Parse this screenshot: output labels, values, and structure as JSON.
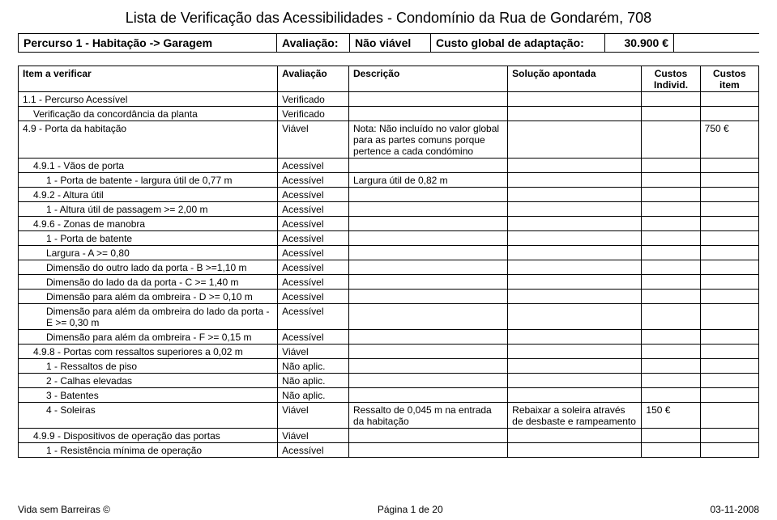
{
  "title": "Lista de Verificação das Acessibilidades - Condomínio da Rua de Gondarém, 708",
  "header": {
    "path": "Percurso 1 - Habitação -> Garagem",
    "eval_label": "Avaliação:",
    "eval_value": "Não viável",
    "cost_label": "Custo global de adaptação:",
    "cost_value": "30.900 €"
  },
  "columns": {
    "item": "Item a verificar",
    "eval": "Avaliação",
    "desc": "Descrição",
    "sol": "Solução apontada",
    "ci": "Custos Individ.",
    "ct": "Custos item"
  },
  "rows": [
    {
      "item": "1.1 - Percurso Acessível",
      "indent": 0,
      "eval": "Verificado",
      "desc": "",
      "sol": "",
      "ci": "",
      "ct": ""
    },
    {
      "item": "Verificação da concordância da planta",
      "indent": 1,
      "eval": "Verificado",
      "desc": "",
      "sol": "",
      "ci": "",
      "ct": ""
    },
    {
      "item": "4.9 - Porta da habitação",
      "indent": 0,
      "eval": "Viável",
      "desc": "Nota: Não incluído no valor global para as partes comuns porque pertence a cada condómino",
      "sol": "",
      "ci": "",
      "ct": "750 €"
    },
    {
      "item": "4.9.1 - Vãos de porta",
      "indent": 1,
      "eval": "Acessível",
      "desc": "",
      "sol": "",
      "ci": "",
      "ct": ""
    },
    {
      "item": "1 - Porta de batente - largura útil de 0,77 m",
      "indent": 2,
      "eval": "Acessível",
      "desc": "Largura útil de 0,82 m",
      "sol": "",
      "ci": "",
      "ct": ""
    },
    {
      "item": "4.9.2 - Altura útil",
      "indent": 1,
      "eval": "Acessível",
      "desc": "",
      "sol": "",
      "ci": "",
      "ct": ""
    },
    {
      "item": "1 - Altura útil de passagem >= 2,00 m",
      "indent": 2,
      "eval": "Acessível",
      "desc": "",
      "sol": "",
      "ci": "",
      "ct": ""
    },
    {
      "item": "4.9.6 - Zonas de manobra",
      "indent": 1,
      "eval": "Acessível",
      "desc": "",
      "sol": "",
      "ci": "",
      "ct": ""
    },
    {
      "item": "1 - Porta de batente",
      "indent": 2,
      "eval": "Acessível",
      "desc": "",
      "sol": "",
      "ci": "",
      "ct": ""
    },
    {
      "item": "Largura - A >= 0,80",
      "indent": 2,
      "eval": "Acessível",
      "desc": "",
      "sol": "",
      "ci": "",
      "ct": ""
    },
    {
      "item": "Dimensão do outro lado da porta - B >=1,10 m",
      "indent": 2,
      "eval": "Acessível",
      "desc": "",
      "sol": "",
      "ci": "",
      "ct": ""
    },
    {
      "item": "Dimensão do lado da da porta - C >= 1,40 m",
      "indent": 2,
      "eval": "Acessível",
      "desc": "",
      "sol": "",
      "ci": "",
      "ct": ""
    },
    {
      "item": "Dimensão para além da ombreira - D >= 0,10 m",
      "indent": 2,
      "eval": "Acessível",
      "desc": "",
      "sol": "",
      "ci": "",
      "ct": ""
    },
    {
      "item": "Dimensão para além da ombreira do lado da porta - E >= 0,30 m",
      "indent": 2,
      "eval": "Acessível",
      "desc": "",
      "sol": "",
      "ci": "",
      "ct": ""
    },
    {
      "item": "Dimensão para além da ombreira - F >= 0,15 m",
      "indent": 2,
      "eval": "Acessível",
      "desc": "",
      "sol": "",
      "ci": "",
      "ct": ""
    },
    {
      "item": "4.9.8 - Portas com ressaltos superiores a 0,02 m",
      "indent": 1,
      "eval": "Viável",
      "desc": "",
      "sol": "",
      "ci": "",
      "ct": ""
    },
    {
      "item": "1 - Ressaltos de piso",
      "indent": 2,
      "eval": "Não aplic.",
      "desc": "",
      "sol": "",
      "ci": "",
      "ct": ""
    },
    {
      "item": "2 - Calhas elevadas",
      "indent": 2,
      "eval": "Não aplic.",
      "desc": "",
      "sol": "",
      "ci": "",
      "ct": ""
    },
    {
      "item": "3 - Batentes",
      "indent": 2,
      "eval": "Não aplic.",
      "desc": "",
      "sol": "",
      "ci": "",
      "ct": ""
    },
    {
      "item": "4 - Soleiras",
      "indent": 2,
      "eval": "Viável",
      "desc": "Ressalto de 0,045 m na entrada da habitação",
      "sol": "Rebaixar a soleira através de desbaste e rampeamento",
      "ci": "150 €",
      "ct": ""
    },
    {
      "item": "4.9.9 - Dispositivos de operação das portas",
      "indent": 1,
      "eval": "Viável",
      "desc": "",
      "sol": "",
      "ci": "",
      "ct": ""
    },
    {
      "item": "1 - Resistência mínima de operação",
      "indent": 2,
      "eval": "Acessível",
      "desc": "",
      "sol": "",
      "ci": "",
      "ct": ""
    }
  ],
  "footer": {
    "left": "Vida sem Barreiras ©",
    "center": "Página 1 de 20",
    "right": "03-11-2008"
  }
}
